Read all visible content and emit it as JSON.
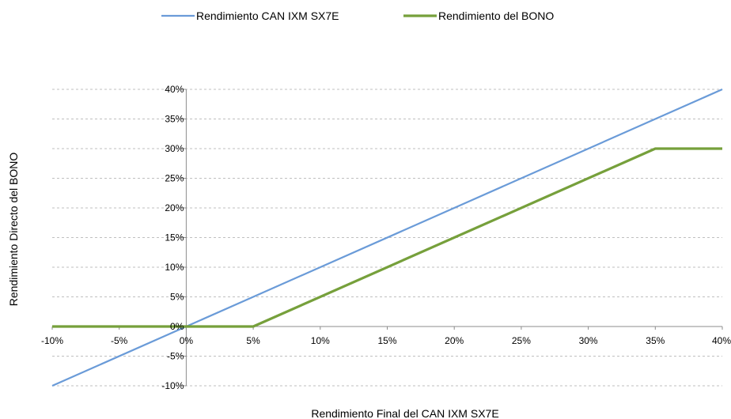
{
  "chart_data": {
    "type": "line",
    "xlabel": "Rendimiento Final del CAN IXM SX7E",
    "ylabel": "Rendimiento Directo del BONO",
    "xlim": [
      -10,
      40
    ],
    "ylim": [
      -10,
      40
    ],
    "x_ticks": [
      -10,
      -5,
      0,
      5,
      10,
      15,
      20,
      25,
      30,
      35,
      40
    ],
    "y_ticks": [
      -10,
      -5,
      0,
      5,
      10,
      15,
      20,
      25,
      30,
      35,
      40
    ],
    "x_tick_labels": [
      "-10%",
      "-5%",
      "0%",
      "5%",
      "10%",
      "15%",
      "20%",
      "25%",
      "30%",
      "35%",
      "40%"
    ],
    "y_tick_labels": [
      "-10%",
      "-5%",
      "0%",
      "5%",
      "10%",
      "15%",
      "20%",
      "25%",
      "30%",
      "35%",
      "40%"
    ],
    "grid": "horizontal dashed",
    "legend_position": "top",
    "series": [
      {
        "name": "Rendimiento CAN IXM SX7E",
        "color": "#6a9bd8",
        "x": [
          -10,
          40
        ],
        "y": [
          -10,
          40
        ]
      },
      {
        "name": "Rendimiento del BONO",
        "color": "#76a03b",
        "x": [
          -10,
          5,
          35,
          40
        ],
        "y": [
          0,
          0,
          30,
          30
        ]
      }
    ]
  }
}
